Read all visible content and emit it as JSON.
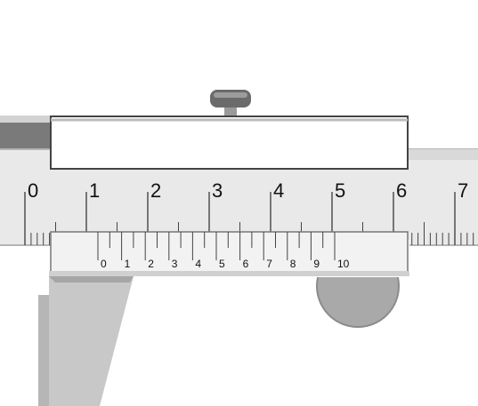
{
  "main_scale": {
    "labels": [
      "0",
      "1",
      "2",
      "3",
      "4",
      "5",
      "6",
      "7"
    ]
  },
  "vernier_scale": {
    "labels": [
      "0",
      "1",
      "2",
      "3",
      "4",
      "5",
      "6",
      "7",
      "8",
      "9",
      "10"
    ]
  },
  "colors": {
    "beam": "#e9e9e9",
    "beam_edge": "#b5b5b5",
    "slider_body": "#dcdcdc",
    "window_panel": "#f2f2f2",
    "jaw": "#c8c8c8",
    "jaw_dark": "#8a8a8a",
    "tick": "#444444",
    "thumb_wheel": "#a9a9a9",
    "knob": "#6f6f6f"
  }
}
